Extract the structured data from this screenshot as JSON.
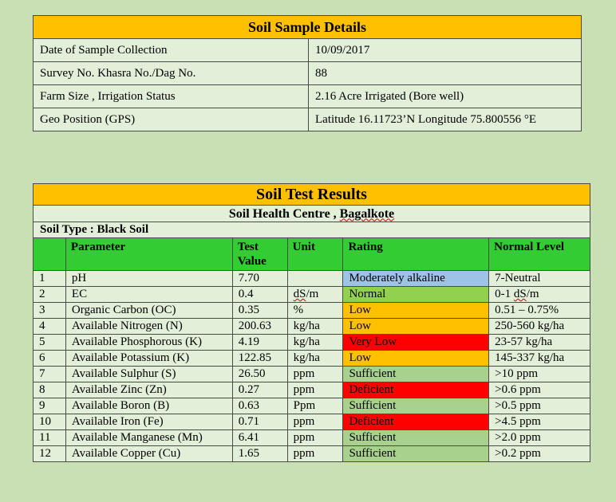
{
  "details": {
    "title": "Soil Sample Details",
    "rows": [
      {
        "label": "Date of Sample Collection",
        "value": "10/09/2017"
      },
      {
        "label": "Survey No. Khasra No./Dag No.",
        "value": "88"
      },
      {
        "label": "Farm Size , Irrigation Status",
        "value": "2.16 Acre Irrigated (Bore well)"
      },
      {
        "label": "Geo Position (GPS)",
        "value": "Latitude 16.11723’N   Longitude 75.800556 °E"
      }
    ]
  },
  "results": {
    "title": "Soil Test Results",
    "subtitle": "Soil Health Centre , Bagalkote",
    "soil_type": "Soil Type : Black Soil",
    "headers": {
      "parameter": "Parameter",
      "test_value": "Test Value",
      "unit": "Unit",
      "rating": "Rating",
      "normal_level": "Normal Level"
    },
    "rows": [
      {
        "no": "1",
        "parameter": "pH",
        "value": "7.70",
        "unit": "",
        "rating": "Moderately alkaline",
        "normal": "7-Neutral",
        "rating_color": "#9dc3e6"
      },
      {
        "no": "2",
        "parameter": "EC",
        "value": "0.4",
        "unit": "dS/m",
        "rating": "Normal",
        "normal": "0-1 dS/m",
        "rating_color": "#92d050"
      },
      {
        "no": "3",
        "parameter": "Organic Carbon (OC)",
        "value": "0.35",
        "unit": "%",
        "rating": "Low",
        "normal": "0.51 – 0.75%",
        "rating_color": "#ffc000"
      },
      {
        "no": "4",
        "parameter": "Available Nitrogen (N)",
        "value": "200.63",
        "unit": "kg/ha",
        "rating": "Low",
        "normal": "250-560 kg/ha",
        "rating_color": "#ffc000"
      },
      {
        "no": "5",
        "parameter": "Available Phosphorous (K)",
        "value": "4.19",
        "unit": "kg/ha",
        "rating": "Very Low",
        "normal": "23-57 kg/ha",
        "rating_color": "#ff0000"
      },
      {
        "no": "6",
        "parameter": "Available Potassium (K)",
        "value": "122.85",
        "unit": "kg/ha",
        "rating": "Low",
        "normal": "145-337 kg/ha",
        "rating_color": "#ffc000"
      },
      {
        "no": "7",
        "parameter": "Available Sulphur (S)",
        "value": "26.50",
        "unit": "ppm",
        "rating": "Sufficient",
        "normal": ">10 ppm",
        "rating_color": "#a9d18e"
      },
      {
        "no": "8",
        "parameter": "Available Zinc (Zn)",
        "value": "0.27",
        "unit": "ppm",
        "rating": "Deficient",
        "normal": ">0.6 ppm",
        "rating_color": "#ff0000"
      },
      {
        "no": "9",
        "parameter": "Available Boron (B)",
        "value": "0.63",
        "unit": "Ppm",
        "rating": "Sufficient",
        "normal": ">0.5 ppm",
        "rating_color": "#a9d18e"
      },
      {
        "no": "10",
        "parameter": "Available Iron (Fe)",
        "value": "0.71",
        "unit": "ppm",
        "rating": "Deficient",
        "normal": ">4.5 ppm",
        "rating_color": "#ff0000"
      },
      {
        "no": "11",
        "parameter": "Available Manganese (Mn)",
        "value": "6.41",
        "unit": "ppm",
        "rating": "Sufficient",
        "normal": ">2.0 ppm",
        "rating_color": "#a9d18e"
      },
      {
        "no": "12",
        "parameter": "Available Copper (Cu)",
        "value": "1.65",
        "unit": "ppm",
        "rating": "Sufficient",
        "normal": ">0.2 ppm",
        "rating_color": "#a9d18e"
      }
    ]
  }
}
